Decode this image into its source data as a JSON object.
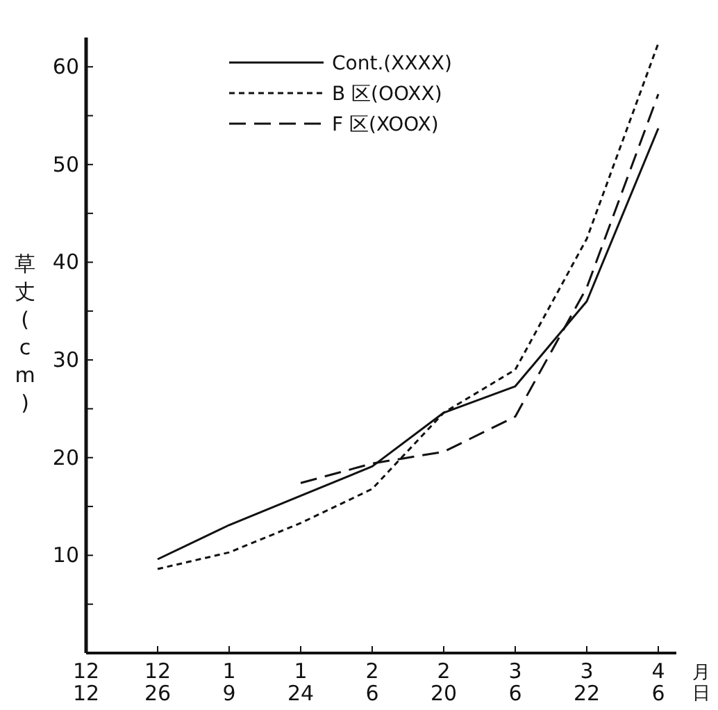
{
  "chart_data": {
    "type": "line",
    "ylabel": "草丈(cm)",
    "xlabel": "月日",
    "categories": [
      "12\n12",
      "12\n26",
      "1\n9",
      "1\n24",
      "2\n6",
      "2\n20",
      "3\n6",
      "3\n22",
      "4\n6"
    ],
    "series": [
      {
        "name": "Cont.(XXXX)",
        "color": "#111111",
        "line_style": "solid",
        "values": [
          null,
          9.6,
          13.1,
          16.1,
          19.1,
          24.6,
          27.3,
          36,
          53.7
        ]
      },
      {
        "name": "B 区(OOXX)",
        "color": "#111111",
        "line_style": "dotted",
        "values": [
          null,
          8.6,
          10.3,
          13.3,
          16.8,
          24.6,
          29.0,
          42.4,
          62.4
        ]
      },
      {
        "name": "F 区(XOOX)",
        "color": "#111111",
        "line_style": "dashed",
        "values": [
          null,
          null,
          null,
          17.4,
          19.4,
          20.6,
          24.2,
          37.4,
          57.2
        ]
      }
    ],
    "ylim": [
      0,
      63
    ],
    "yticks": [
      {
        "value": 5,
        "label": null
      },
      10,
      {
        "value": 15,
        "label": null
      },
      20,
      {
        "value": 25,
        "label": null
      },
      30,
      {
        "value": 35,
        "label": null
      },
      40,
      {
        "value": 45,
        "label": null
      },
      50,
      {
        "value": 55,
        "label": null
      },
      60
    ],
    "grid": false,
    "legend": "top left"
  }
}
